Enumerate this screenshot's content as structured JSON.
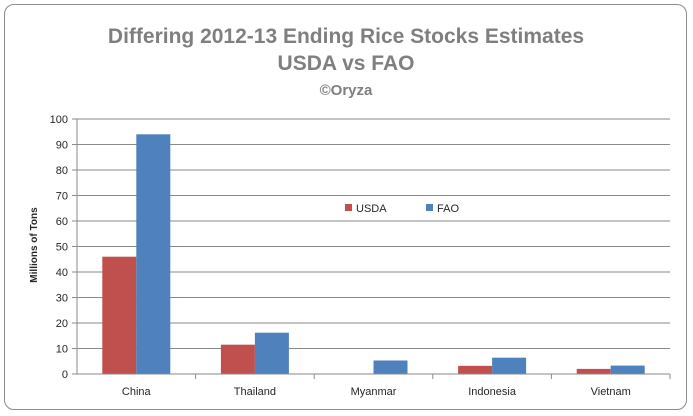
{
  "chart_data": {
    "type": "bar",
    "title": "Differing 2012-13  Ending Rice Stocks Estimates",
    "subtitle": "USDA vs FAO",
    "credit": "©Oryza",
    "ylabel": "Millions of Tons",
    "xlabel": "",
    "ylim": [
      0,
      100
    ],
    "yticks": [
      0,
      10,
      20,
      30,
      40,
      50,
      60,
      70,
      80,
      90,
      100
    ],
    "grid": true,
    "legend_position": "center",
    "categories": [
      "China",
      "Thailand",
      "Myanmar",
      "Indonesia",
      "Vietnam"
    ],
    "series": [
      {
        "name": "USDA",
        "color": "#c0504d",
        "values": [
          46,
          11.5,
          0,
          3.2,
          2
        ]
      },
      {
        "name": "FAO",
        "color": "#4f81bd",
        "values": [
          94,
          16.2,
          5.3,
          6.4,
          3.3
        ]
      }
    ]
  }
}
